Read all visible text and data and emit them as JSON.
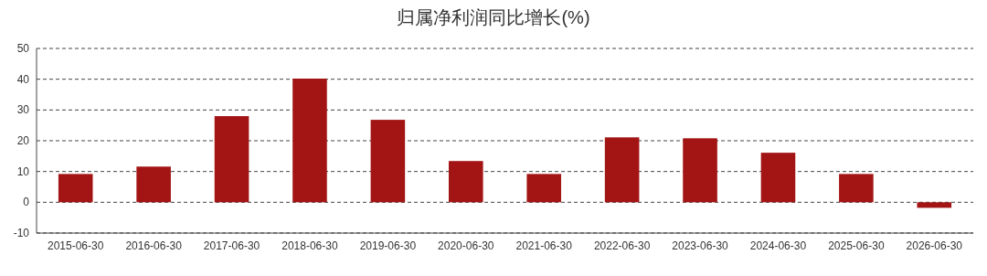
{
  "chart_data": {
    "type": "bar",
    "title": "归属净利润同比增长(%)",
    "categories": [
      "2015-06-30",
      "2016-06-30",
      "2017-06-30",
      "2018-06-30",
      "2019-06-30",
      "2020-06-30",
      "2021-06-30",
      "2022-06-30",
      "2023-06-30",
      "2024-06-30",
      "2025-06-30",
      "2026-06-30"
    ],
    "values": [
      9.2,
      11.6,
      28.0,
      40.2,
      26.8,
      13.4,
      9.2,
      21.1,
      20.8,
      16.1,
      9.2,
      -1.8
    ],
    "color": "#a31515",
    "ylim": [
      -10,
      50
    ],
    "yticks": [
      -10,
      0,
      10,
      20,
      30,
      40,
      50
    ],
    "grid": "y"
  }
}
